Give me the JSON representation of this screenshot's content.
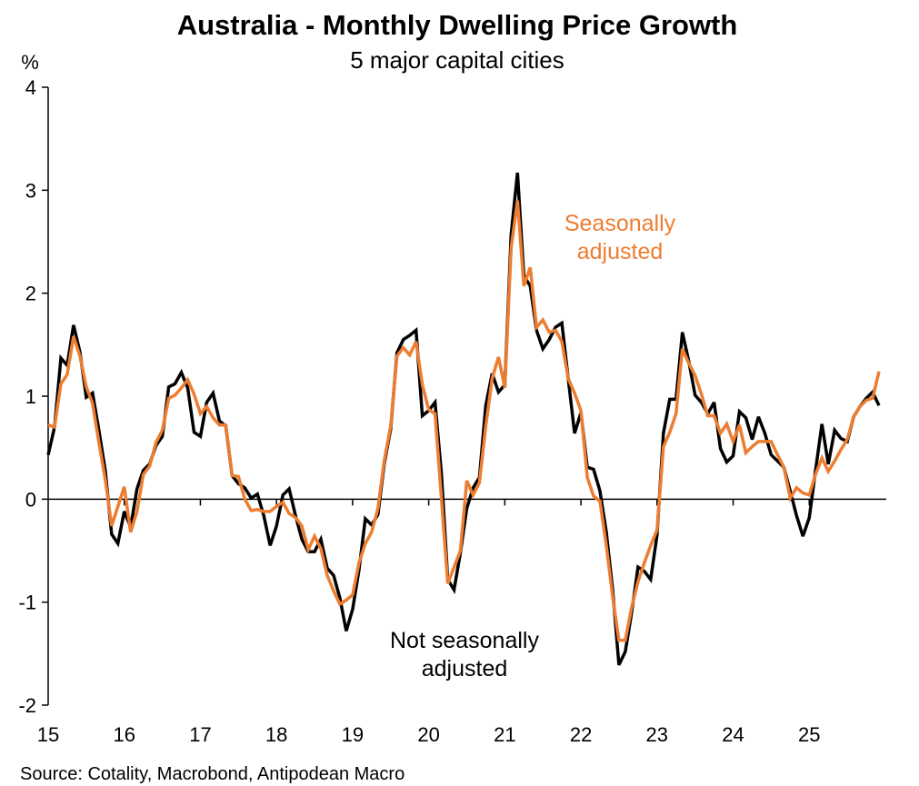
{
  "chart_data": {
    "type": "line",
    "title": "Australia - Monthly Dwelling Price Growth",
    "subtitle": "5 major capital cities",
    "ylabel": "%",
    "xlabel": "",
    "ylim": [
      -2,
      4
    ],
    "yticks": [
      "4",
      "3",
      "2",
      "1",
      "0",
      "-1",
      "-2"
    ],
    "ytick_values": [
      4,
      3,
      2,
      1,
      0,
      -1,
      -2
    ],
    "xticks": [
      "15",
      "16",
      "17",
      "18",
      "19",
      "20",
      "21",
      "22",
      "23",
      "24",
      "25"
    ],
    "x_start": "Jan 2015",
    "x_frequency": "monthly",
    "grid": false,
    "series": [
      {
        "name": "Not seasonally adjusted",
        "label_lines": [
          "Not seasonally",
          "adjusted"
        ],
        "color": "#000000",
        "values": [
          0.43,
          0.7,
          1.37,
          1.3,
          1.69,
          1.43,
          0.99,
          1.03,
          0.67,
          0.28,
          -0.34,
          -0.43,
          -0.12,
          -0.27,
          0.1,
          0.28,
          0.34,
          0.52,
          0.61,
          1.09,
          1.12,
          1.23,
          1.08,
          0.65,
          0.61,
          0.94,
          1.03,
          0.76,
          0.71,
          0.23,
          0.15,
          0.11,
          0.01,
          0.05,
          -0.16,
          -0.45,
          -0.26,
          0.04,
          0.1,
          -0.16,
          -0.39,
          -0.51,
          -0.51,
          -0.39,
          -0.67,
          -0.74,
          -0.96,
          -1.28,
          -1.07,
          -0.69,
          -0.19,
          -0.25,
          -0.15,
          0.35,
          0.68,
          1.42,
          1.55,
          1.59,
          1.64,
          0.81,
          0.86,
          0.94,
          0.25,
          -0.78,
          -0.88,
          -0.52,
          -0.09,
          0.11,
          0.21,
          0.91,
          1.22,
          1.04,
          1.11,
          2.57,
          3.17,
          2.17,
          2.07,
          1.64,
          1.46,
          1.55,
          1.67,
          1.71,
          1.17,
          0.64,
          0.84,
          0.31,
          0.29,
          0.08,
          -0.32,
          -0.88,
          -1.61,
          -1.48,
          -1.1,
          -0.66,
          -0.7,
          -0.78,
          -0.35,
          0.64,
          0.97,
          0.97,
          1.62,
          1.34,
          1.01,
          0.94,
          0.83,
          0.94,
          0.49,
          0.36,
          0.42,
          0.85,
          0.79,
          0.58,
          0.8,
          0.64,
          0.43,
          0.37,
          0.31,
          0.08,
          -0.16,
          -0.36,
          -0.18,
          0.28,
          0.73,
          0.34,
          0.67,
          0.59,
          0.56,
          0.8,
          0.9,
          0.98,
          1.04,
          0.91
        ]
      },
      {
        "name": "Seasonally adjusted",
        "label_lines": [
          "Seasonally",
          "adjusted"
        ],
        "color": "#ED7D31",
        "values": [
          0.72,
          0.7,
          1.12,
          1.21,
          1.58,
          1.39,
          1.09,
          0.93,
          0.55,
          0.19,
          -0.26,
          -0.07,
          0.12,
          -0.32,
          -0.12,
          0.24,
          0.32,
          0.55,
          0.67,
          0.98,
          1.01,
          1.08,
          1.16,
          1.02,
          0.83,
          0.9,
          0.79,
          0.72,
          0.72,
          0.23,
          0.22,
          0.0,
          -0.11,
          -0.1,
          -0.12,
          -0.12,
          -0.07,
          -0.03,
          -0.14,
          -0.18,
          -0.26,
          -0.49,
          -0.36,
          -0.48,
          -0.74,
          -0.89,
          -1.02,
          -0.98,
          -0.93,
          -0.62,
          -0.43,
          -0.32,
          -0.09,
          0.38,
          0.71,
          1.39,
          1.47,
          1.4,
          1.53,
          1.11,
          0.87,
          0.83,
          0.01,
          -0.82,
          -0.66,
          -0.5,
          0.18,
          0.04,
          0.16,
          0.71,
          1.17,
          1.38,
          1.08,
          2.44,
          2.9,
          2.07,
          2.25,
          1.67,
          1.74,
          1.62,
          1.64,
          1.53,
          1.17,
          1.03,
          0.86,
          0.21,
          0.03,
          -0.02,
          -0.45,
          -0.95,
          -1.37,
          -1.37,
          -1.05,
          -0.8,
          -0.62,
          -0.45,
          -0.3,
          0.51,
          0.65,
          0.83,
          1.46,
          1.32,
          1.2,
          1.02,
          0.81,
          0.81,
          0.64,
          0.73,
          0.56,
          0.72,
          0.45,
          0.51,
          0.56,
          0.56,
          0.56,
          0.43,
          0.31,
          0.01,
          0.11,
          0.06,
          0.04,
          0.24,
          0.4,
          0.27,
          0.37,
          0.48,
          0.58,
          0.8,
          0.9,
          0.96,
          0.98,
          1.24
        ]
      }
    ],
    "source": "Source: Cotality, Macrobond, Antipodean Macro"
  }
}
